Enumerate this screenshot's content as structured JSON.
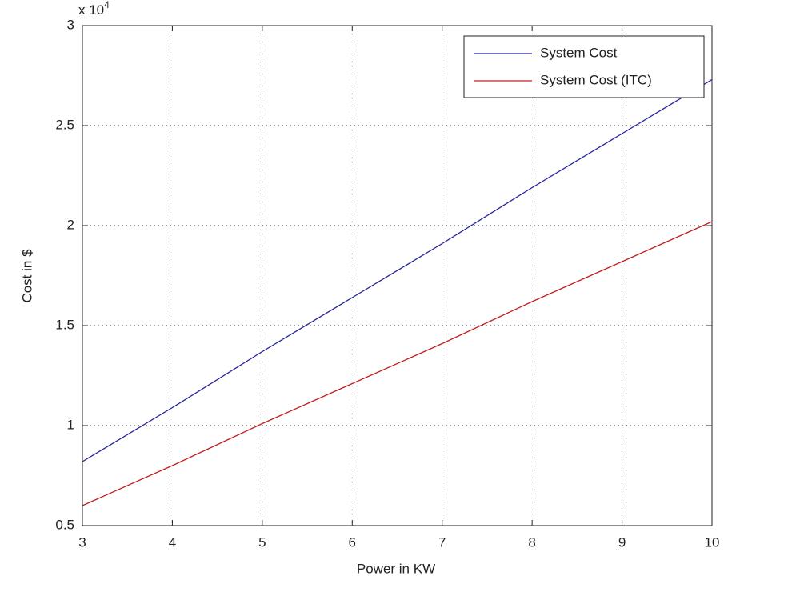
{
  "chart_data": {
    "type": "line",
    "x_label": "Power in KW",
    "y_label": "Cost in $",
    "y_multiplier": {
      "base": "x 10",
      "exponent": "4"
    },
    "x": [
      3,
      4,
      5,
      6,
      7,
      8,
      9,
      10
    ],
    "series": [
      {
        "name": "System Cost",
        "color": "#1f1f9a",
        "values": [
          0.82,
          1.09,
          1.37,
          1.64,
          1.91,
          2.19,
          2.46,
          2.73
        ]
      },
      {
        "name": "System Cost (ITC)",
        "color": "#c02020",
        "values": [
          0.6,
          0.8,
          1.01,
          1.21,
          1.41,
          1.62,
          1.82,
          2.02
        ]
      }
    ],
    "xlim": [
      3,
      10
    ],
    "xticks": [
      3,
      4,
      5,
      6,
      7,
      8,
      9,
      10
    ],
    "ylim": [
      0.5,
      3
    ],
    "yticks": [
      0.5,
      1,
      1.5,
      2,
      2.5,
      3
    ],
    "grid": true,
    "legend": "top-right"
  }
}
